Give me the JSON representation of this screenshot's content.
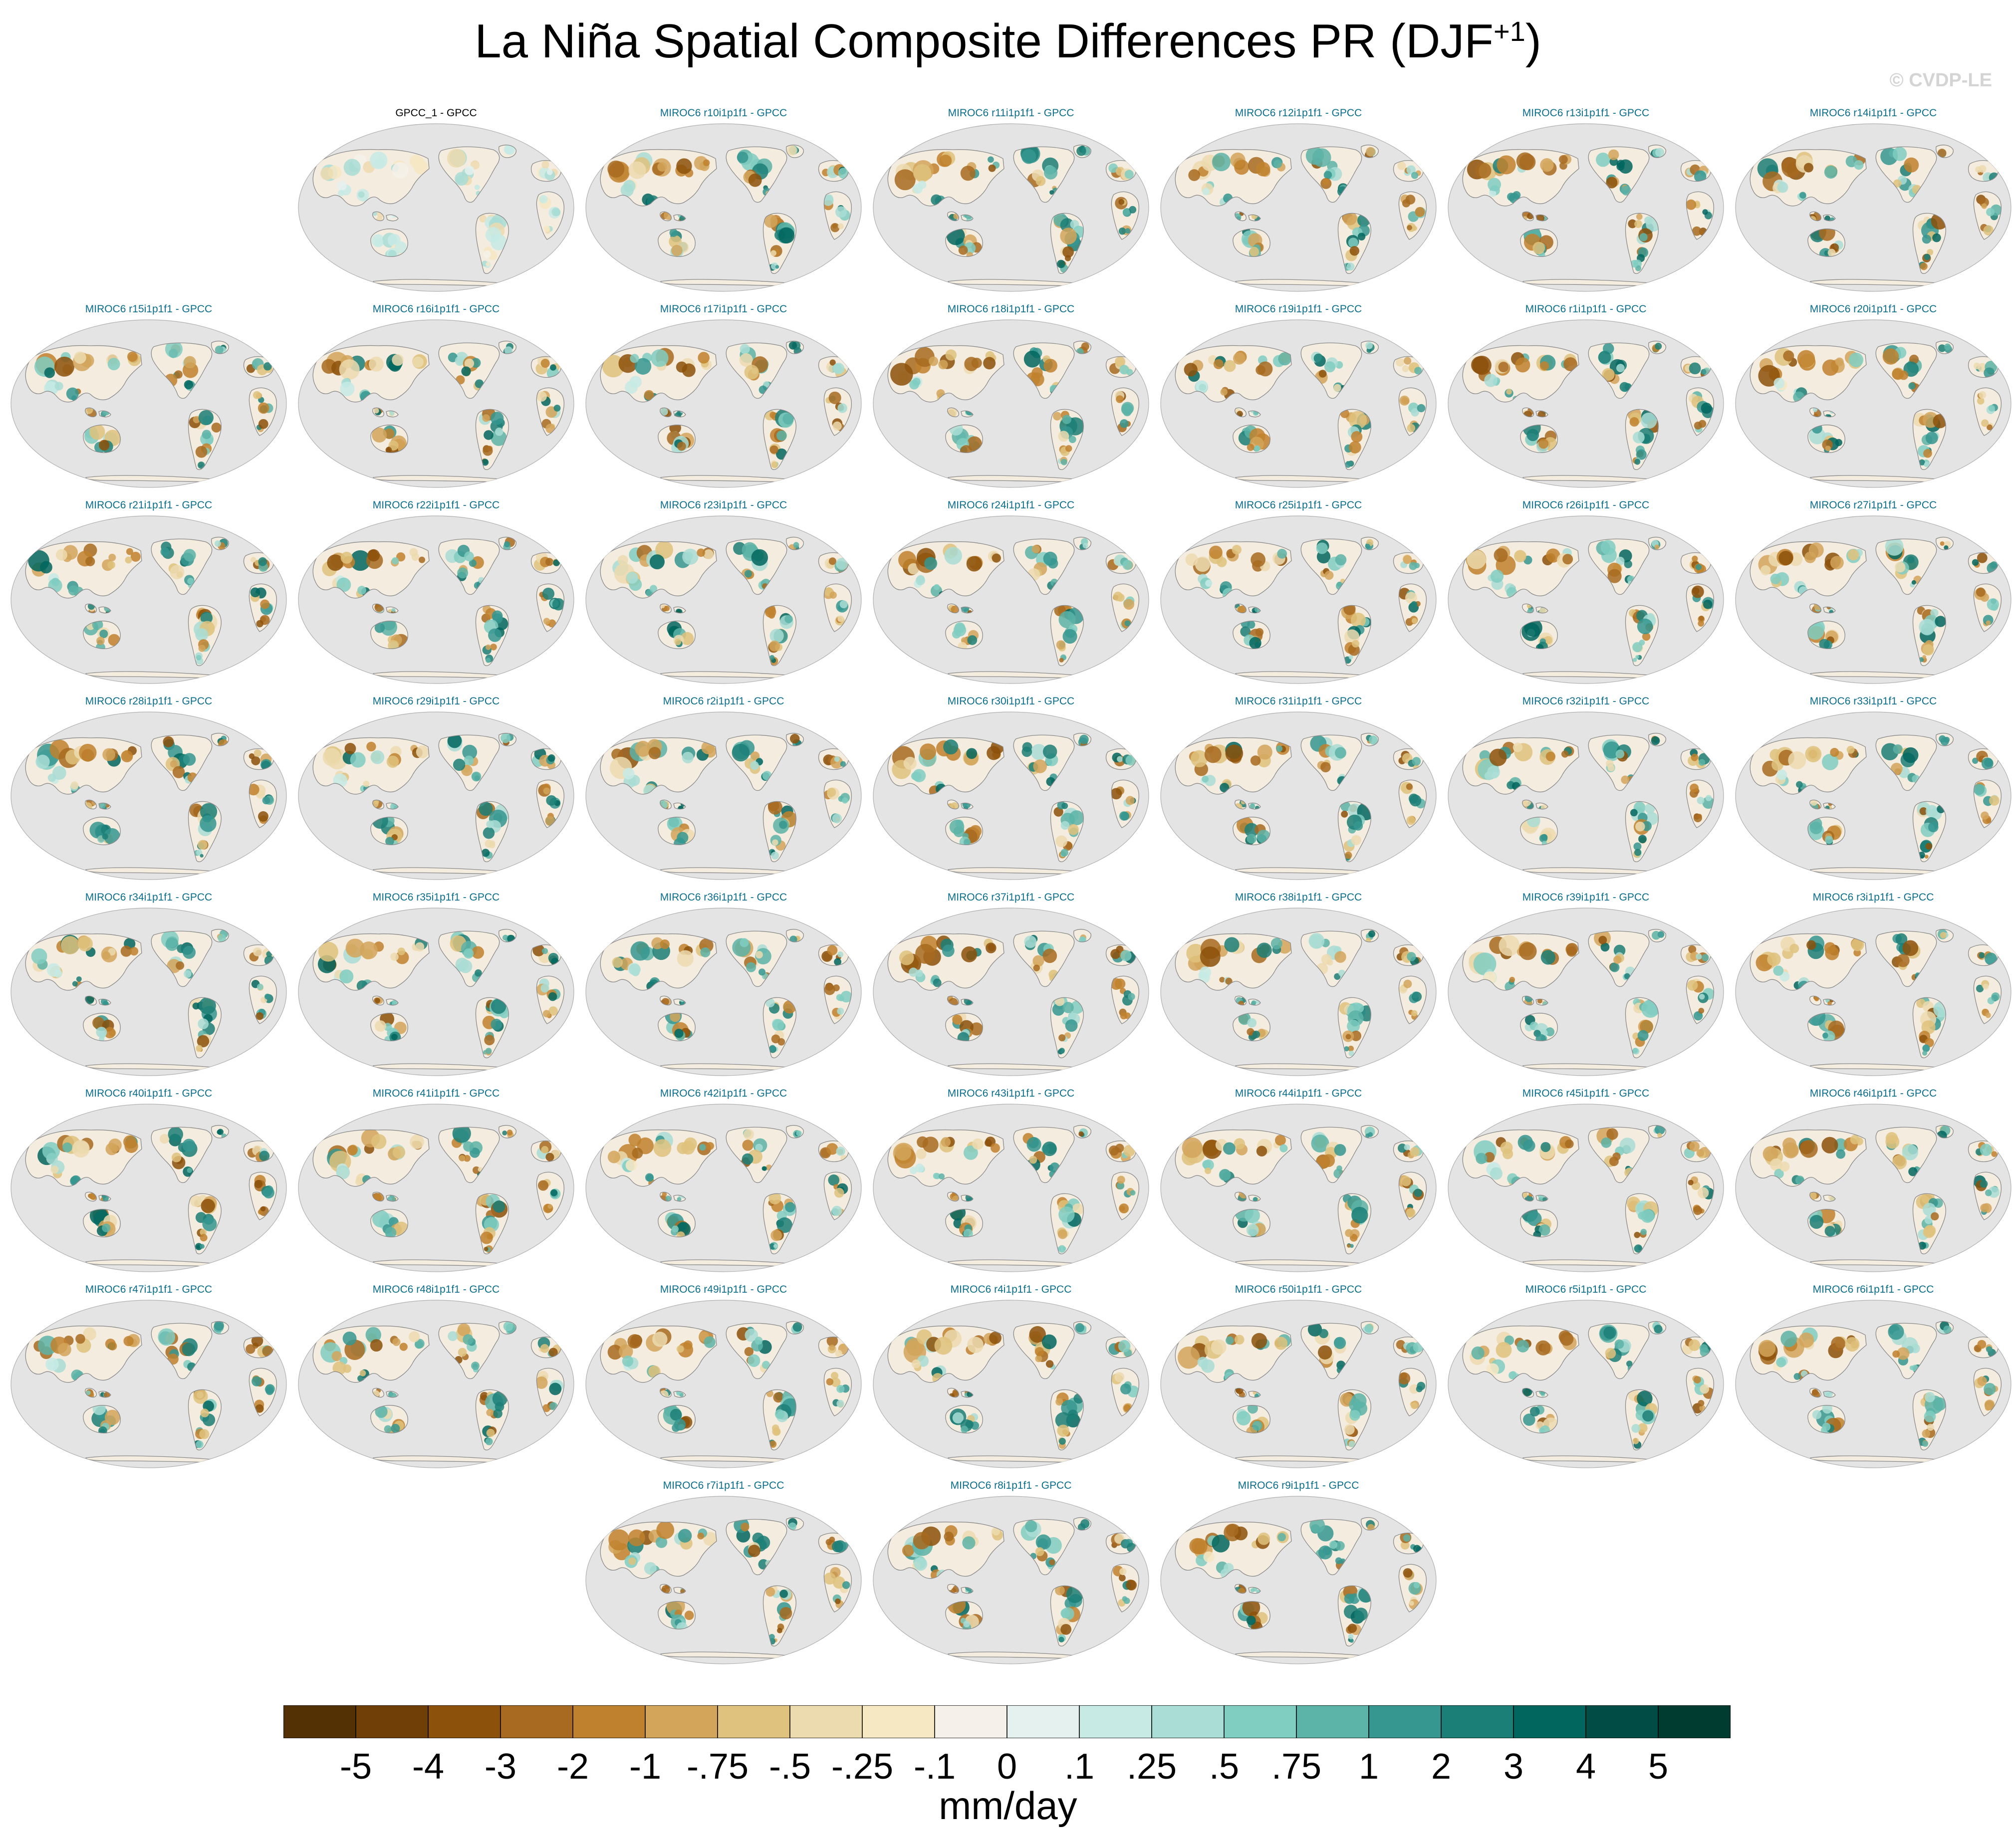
{
  "title": {
    "main": "La Niña Spatial Composite Differences PR (DJF",
    "superscript": "+1",
    "close": ")"
  },
  "copyright": "© CVDP-LE",
  "panels": [
    {
      "label": "GPCC_1 - GPCC",
      "type": "observation"
    },
    {
      "label": "MIROC6 r10i1p1f1 - GPCC",
      "type": "model"
    },
    {
      "label": "MIROC6 r11i1p1f1 - GPCC",
      "type": "model"
    },
    {
      "label": "MIROC6 r12i1p1f1 - GPCC",
      "type": "model"
    },
    {
      "label": "MIROC6 r13i1p1f1 - GPCC",
      "type": "model"
    },
    {
      "label": "MIROC6 r14i1p1f1 - GPCC",
      "type": "model"
    },
    {
      "label": "MIROC6 r15i1p1f1 - GPCC",
      "type": "model"
    },
    {
      "label": "MIROC6 r16i1p1f1 - GPCC",
      "type": "model"
    },
    {
      "label": "MIROC6 r17i1p1f1 - GPCC",
      "type": "model"
    },
    {
      "label": "MIROC6 r18i1p1f1 - GPCC",
      "type": "model"
    },
    {
      "label": "MIROC6 r19i1p1f1 - GPCC",
      "type": "model"
    },
    {
      "label": "MIROC6 r1i1p1f1 - GPCC",
      "type": "model"
    },
    {
      "label": "MIROC6 r20i1p1f1 - GPCC",
      "type": "model"
    },
    {
      "label": "MIROC6 r21i1p1f1 - GPCC",
      "type": "model"
    },
    {
      "label": "MIROC6 r22i1p1f1 - GPCC",
      "type": "model"
    },
    {
      "label": "MIROC6 r23i1p1f1 - GPCC",
      "type": "model"
    },
    {
      "label": "MIROC6 r24i1p1f1 - GPCC",
      "type": "model"
    },
    {
      "label": "MIROC6 r25i1p1f1 - GPCC",
      "type": "model"
    },
    {
      "label": "MIROC6 r26i1p1f1 - GPCC",
      "type": "model"
    },
    {
      "label": "MIROC6 r27i1p1f1 - GPCC",
      "type": "model"
    },
    {
      "label": "MIROC6 r28i1p1f1 - GPCC",
      "type": "model"
    },
    {
      "label": "MIROC6 r29i1p1f1 - GPCC",
      "type": "model"
    },
    {
      "label": "MIROC6 r2i1p1f1 - GPCC",
      "type": "model"
    },
    {
      "label": "MIROC6 r30i1p1f1 - GPCC",
      "type": "model"
    },
    {
      "label": "MIROC6 r31i1p1f1 - GPCC",
      "type": "model"
    },
    {
      "label": "MIROC6 r32i1p1f1 - GPCC",
      "type": "model"
    },
    {
      "label": "MIROC6 r33i1p1f1 - GPCC",
      "type": "model"
    },
    {
      "label": "MIROC6 r34i1p1f1 - GPCC",
      "type": "model"
    },
    {
      "label": "MIROC6 r35i1p1f1 - GPCC",
      "type": "model"
    },
    {
      "label": "MIROC6 r36i1p1f1 - GPCC",
      "type": "model"
    },
    {
      "label": "MIROC6 r37i1p1f1 - GPCC",
      "type": "model"
    },
    {
      "label": "MIROC6 r38i1p1f1 - GPCC",
      "type": "model"
    },
    {
      "label": "MIROC6 r39i1p1f1 - GPCC",
      "type": "model"
    },
    {
      "label": "MIROC6 r3i1p1f1 - GPCC",
      "type": "model"
    },
    {
      "label": "MIROC6 r40i1p1f1 - GPCC",
      "type": "model"
    },
    {
      "label": "MIROC6 r41i1p1f1 - GPCC",
      "type": "model"
    },
    {
      "label": "MIROC6 r42i1p1f1 - GPCC",
      "type": "model"
    },
    {
      "label": "MIROC6 r43i1p1f1 - GPCC",
      "type": "model"
    },
    {
      "label": "MIROC6 r44i1p1f1 - GPCC",
      "type": "model"
    },
    {
      "label": "MIROC6 r45i1p1f1 - GPCC",
      "type": "model"
    },
    {
      "label": "MIROC6 r46i1p1f1 - GPCC",
      "type": "model"
    },
    {
      "label": "MIROC6 r47i1p1f1 - GPCC",
      "type": "model"
    },
    {
      "label": "MIROC6 r48i1p1f1 - GPCC",
      "type": "model"
    },
    {
      "label": "MIROC6 r49i1p1f1 - GPCC",
      "type": "model"
    },
    {
      "label": "MIROC6 r4i1p1f1 - GPCC",
      "type": "model"
    },
    {
      "label": "MIROC6 r50i1p1f1 - GPCC",
      "type": "model"
    },
    {
      "label": "MIROC6 r5i1p1f1 - GPCC",
      "type": "model"
    },
    {
      "label": "MIROC6 r6i1p1f1 - GPCC",
      "type": "model"
    },
    {
      "label": "MIROC6 r7i1p1f1 - GPCC",
      "type": "model"
    },
    {
      "label": "MIROC6 r8i1p1f1 - GPCC",
      "type": "model"
    },
    {
      "label": "MIROC6 r9i1p1f1 - GPCC",
      "type": "model"
    }
  ],
  "colorbar": {
    "colors": [
      "#543005",
      "#6f3f07",
      "#8c510a",
      "#a76a20",
      "#bf812d",
      "#d2a55a",
      "#dfc27d",
      "#ecdbaf",
      "#f6e8c3",
      "#f5f1ea",
      "#e4f1ee",
      "#c7eae5",
      "#a9ddd5",
      "#80cdc1",
      "#5cb3a7",
      "#35978f",
      "#1c7f77",
      "#01665e",
      "#014c44",
      "#003c30"
    ],
    "labels": [
      "-5",
      "-4",
      "-3",
      "-2",
      "-1",
      "-.75",
      "-.5",
      "-.25",
      "-.1",
      "0",
      ".1",
      ".25",
      ".5",
      ".75",
      "1",
      "2",
      "3",
      "4",
      "5"
    ],
    "units": "mm/day"
  },
  "map_style": {
    "ocean_color": "#e4e4e4",
    "coast_color": "#8a8a8a",
    "land_neutral": "#f3ecdf"
  }
}
